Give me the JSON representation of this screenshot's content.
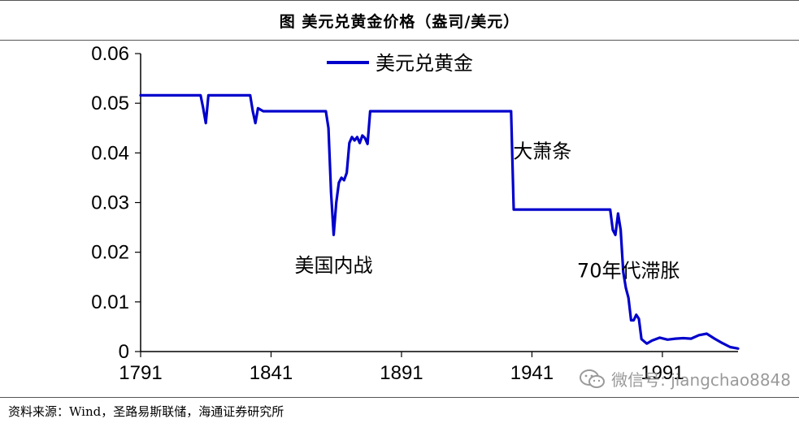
{
  "header": {
    "title": "图 美元兑黄金价格（盎司/美元）"
  },
  "source": {
    "text": "资料来源：Wind，圣路易斯联储，海通证券研究所"
  },
  "watermark": {
    "text": "微信号: jiangchao8848",
    "icon": "wechat-bubble-icon"
  },
  "chart_data": {
    "type": "line",
    "title": "",
    "xlabel": "",
    "ylabel": "",
    "xlim": [
      1791,
      2020
    ],
    "ylim": [
      0,
      0.06
    ],
    "x_ticks": [
      "1791",
      "1841",
      "1891",
      "1941",
      "1991"
    ],
    "y_ticks": [
      "0",
      "0.01",
      "0.02",
      "0.03",
      "0.04",
      "0.05",
      "0.06"
    ],
    "grid": false,
    "legend": {
      "position": "top-center",
      "entries": [
        "美元兑黄金"
      ]
    },
    "series": [
      {
        "name": "美元兑黄金",
        "color": "#0000cc",
        "points": [
          [
            1791,
            0.0516
          ],
          [
            1814,
            0.0516
          ],
          [
            1815,
            0.049
          ],
          [
            1816,
            0.046
          ],
          [
            1817,
            0.0516
          ],
          [
            1833,
            0.0516
          ],
          [
            1834,
            0.0484
          ],
          [
            1835,
            0.046
          ],
          [
            1836,
            0.049
          ],
          [
            1838,
            0.0484
          ],
          [
            1862,
            0.0484
          ],
          [
            1863,
            0.045
          ],
          [
            1864,
            0.032
          ],
          [
            1865,
            0.0235
          ],
          [
            1866,
            0.03
          ],
          [
            1867,
            0.034
          ],
          [
            1868,
            0.035
          ],
          [
            1869,
            0.0345
          ],
          [
            1870,
            0.036
          ],
          [
            1871,
            0.042
          ],
          [
            1872,
            0.0432
          ],
          [
            1873,
            0.0425
          ],
          [
            1874,
            0.0432
          ],
          [
            1875,
            0.042
          ],
          [
            1876,
            0.0435
          ],
          [
            1877,
            0.043
          ],
          [
            1878,
            0.0418
          ],
          [
            1879,
            0.0484
          ],
          [
            1933,
            0.0484
          ],
          [
            1934,
            0.0286
          ],
          [
            1971,
            0.0286
          ],
          [
            1972,
            0.0245
          ],
          [
            1973,
            0.0235
          ],
          [
            1974,
            0.0278
          ],
          [
            1975,
            0.0245
          ],
          [
            1976,
            0.016
          ],
          [
            1977,
            0.0128
          ],
          [
            1978,
            0.0108
          ],
          [
            1979,
            0.0063
          ],
          [
            1980,
            0.0063
          ],
          [
            1981,
            0.0074
          ],
          [
            1982,
            0.0066
          ],
          [
            1983,
            0.0025
          ],
          [
            1985,
            0.0016
          ],
          [
            1987,
            0.0022
          ],
          [
            1990,
            0.0028
          ],
          [
            1993,
            0.0024
          ],
          [
            1996,
            0.0026
          ],
          [
            1999,
            0.0027
          ],
          [
            2002,
            0.0026
          ],
          [
            2005,
            0.0033
          ],
          [
            2008,
            0.0036
          ],
          [
            2011,
            0.0026
          ],
          [
            2014,
            0.0017
          ],
          [
            2017,
            0.0009
          ],
          [
            2019,
            0.0007
          ],
          [
            2020,
            0.0006
          ]
        ]
      }
    ],
    "annotations": [
      {
        "text": "美国内战",
        "x": 1865,
        "y": 0.016
      },
      {
        "text": "大萧条",
        "x": 1945,
        "y": 0.039
      },
      {
        "text": "70年代滞胀",
        "x": 1978,
        "y": 0.015
      }
    ]
  }
}
